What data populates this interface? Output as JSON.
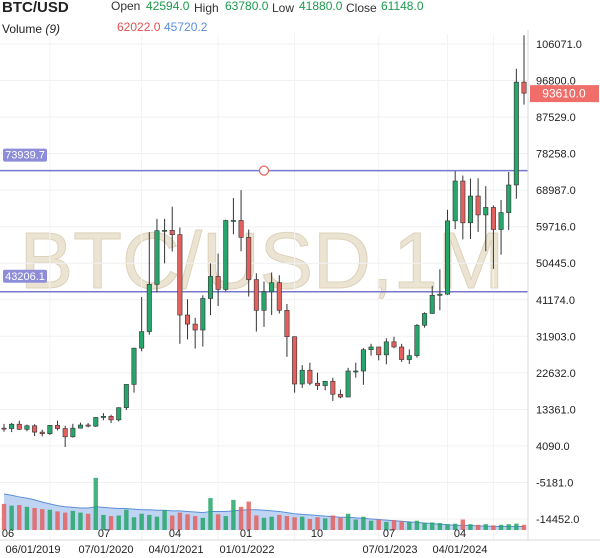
{
  "header": {
    "symbol": "BTC/USD",
    "open_label": "Open",
    "open_value": "42594.0",
    "high_label": "High",
    "high_value": "63780.0",
    "low_label": "Low",
    "low_value": "41880.0",
    "close_label": "Close",
    "close_value": "61148.0",
    "volume_label": "Volume",
    "volume_period": "(9)",
    "volume_value_a": "62022.0",
    "volume_value_b": "45720.2"
  },
  "watermark": "BTC/USD,1M",
  "colors": {
    "up": "#26a66a",
    "down": "#e2615e",
    "level": "#7777cc",
    "price_badge": "#ef6e6a",
    "volume_area": "#a9c5ef",
    "volume_line": "#5b8fd8"
  },
  "chart_data": {
    "type": "candlestick",
    "title": "BTC/USD",
    "timeframe": "1M",
    "price_axis_ticks": [
      106071.0,
      96800.0,
      87529.0,
      78258.0,
      68987.0,
      59716.0,
      50445.0,
      41174.0,
      31903.0,
      22632.0,
      13361.0,
      4090.0,
      -5181.0,
      -14452.0
    ],
    "price_axis_labels": [
      "106071.0",
      "96800.0",
      "87529.0",
      "78258.0",
      "68987.0",
      "59716.0",
      "50445.0",
      "41174.0",
      "31903.0",
      "22632.0",
      "13361.0",
      "4090.0",
      "-5181.0",
      "-14452.0"
    ],
    "x_axis_labels": [
      "06",
      "06/01/2019",
      "07",
      "07/01/2020",
      "04",
      "04/01/2021",
      "01",
      "01/01/2022",
      "10",
      "07",
      "07/01/2023",
      "04",
      "04/01/2024"
    ],
    "current_price": 93610.0,
    "current_price_label": "93610.0",
    "levels": [
      {
        "value": 73939.7,
        "label": "73939.7"
      },
      {
        "value": 43206.1,
        "label": "43206.1"
      }
    ],
    "candles": [
      [
        8600,
        9700,
        7700,
        8500
      ],
      [
        8500,
        9900,
        7600,
        9600
      ],
      [
        9600,
        10500,
        8100,
        8300
      ],
      [
        8300,
        9500,
        7800,
        9200
      ],
      [
        9200,
        9600,
        6600,
        7600
      ],
      [
        7600,
        8200,
        6500,
        7200
      ],
      [
        7200,
        9400,
        6900,
        9300
      ],
      [
        9300,
        10500,
        8000,
        8500
      ],
      [
        8500,
        9200,
        3800,
        6400
      ],
      [
        6400,
        9700,
        6200,
        8600
      ],
      [
        8600,
        10000,
        8500,
        9400
      ],
      [
        9400,
        9900,
        8800,
        9100
      ],
      [
        9100,
        11400,
        8900,
        11300
      ],
      [
        11300,
        12400,
        10600,
        11600
      ],
      [
        11600,
        12000,
        9900,
        10700
      ],
      [
        10700,
        13900,
        10300,
        13800
      ],
      [
        13800,
        19500,
        13200,
        19700
      ],
      [
        19700,
        29000,
        17600,
        28900
      ],
      [
        28900,
        41900,
        28100,
        33100
      ],
      [
        33100,
        58300,
        32300,
        45100
      ],
      [
        45100,
        61700,
        43000,
        58700
      ],
      [
        58700,
        61700,
        50400,
        58800
      ],
      [
        58800,
        64800,
        53400,
        57700
      ],
      [
        57700,
        59500,
        30000,
        37300
      ],
      [
        37300,
        41300,
        31100,
        35000
      ],
      [
        35000,
        36600,
        28800,
        33500
      ],
      [
        33500,
        42300,
        29300,
        41500
      ],
      [
        41500,
        50400,
        37300,
        47100
      ],
      [
        47100,
        52900,
        39600,
        43800
      ],
      [
        43800,
        61500,
        43300,
        61300
      ],
      [
        61300,
        67000,
        57800,
        61300
      ],
      [
        61300,
        69000,
        53500,
        57000
      ],
      [
        57000,
        59000,
        42000,
        46300
      ],
      [
        46300,
        47900,
        33100,
        38500
      ],
      [
        38500,
        45800,
        34300,
        43200
      ],
      [
        43200,
        48100,
        37300,
        45500
      ],
      [
        45500,
        47400,
        37700,
        38500
      ],
      [
        38500,
        40100,
        26700,
        31800
      ],
      [
        31800,
        31900,
        17600,
        19800
      ],
      [
        19800,
        24600,
        18800,
        23300
      ],
      [
        23300,
        25200,
        19500,
        20000
      ],
      [
        20000,
        22700,
        18300,
        19400
      ],
      [
        19400,
        20400,
        18200,
        20500
      ],
      [
        20500,
        21400,
        15500,
        17200
      ],
      [
        17200,
        18400,
        16200,
        16500
      ],
      [
        16500,
        23900,
        16500,
        23100
      ],
      [
        23100,
        25200,
        21400,
        23100
      ],
      [
        23100,
        28900,
        19600,
        28500
      ],
      [
        28500,
        30000,
        27000,
        29200
      ],
      [
        29200,
        29100,
        25800,
        27200
      ],
      [
        27200,
        31400,
        24800,
        30500
      ],
      [
        30500,
        31800,
        28900,
        29200
      ],
      [
        29200,
        30000,
        25400,
        26000
      ],
      [
        26000,
        28600,
        24900,
        27000
      ],
      [
        27000,
        35000,
        26500,
        34700
      ],
      [
        34700,
        38000,
        34100,
        37700
      ],
      [
        37700,
        44700,
        37600,
        42300
      ],
      [
        42300,
        48900,
        38500,
        42600
      ],
      [
        42600,
        64000,
        42400,
        61200
      ],
      [
        61200,
        73800,
        59100,
        71300
      ],
      [
        71300,
        72700,
        56500,
        60700
      ],
      [
        60700,
        71900,
        56600,
        67500
      ],
      [
        67500,
        72000,
        58400,
        62700
      ],
      [
        62700,
        70000,
        53500,
        64600
      ],
      [
        64600,
        65100,
        49000,
        59000
      ],
      [
        59000,
        66500,
        52600,
        63300
      ],
      [
        63300,
        73600,
        58900,
        70300
      ],
      [
        70300,
        99800,
        66800,
        96400
      ],
      [
        96400,
        108300,
        90700,
        93600
      ]
    ],
    "volume": [
      0.45,
      0.42,
      0.43,
      0.4,
      0.38,
      0.36,
      0.35,
      0.32,
      0.3,
      0.33,
      0.3,
      0.28,
      0.9,
      0.26,
      0.24,
      0.25,
      0.35,
      0.22,
      0.28,
      0.26,
      0.23,
      0.34,
      0.25,
      0.3,
      0.27,
      0.24,
      0.21,
      0.55,
      0.27,
      0.24,
      0.52,
      0.4,
      0.49,
      0.25,
      0.21,
      0.23,
      0.26,
      0.24,
      0.22,
      0.23,
      0.19,
      0.22,
      0.2,
      0.25,
      0.21,
      0.28,
      0.18,
      0.23,
      0.16,
      0.18,
      0.14,
      0.17,
      0.15,
      0.14,
      0.16,
      0.12,
      0.13,
      0.12,
      0.1,
      0.11,
      0.18,
      0.1,
      0.09,
      0.1,
      0.08,
      0.09,
      0.1,
      0.11,
      0.09
    ],
    "volume_avg": [
      0.62,
      0.6,
      0.57,
      0.55,
      0.52,
      0.48,
      0.45,
      0.42,
      0.4,
      0.39,
      0.38,
      0.38,
      0.4,
      0.39,
      0.38,
      0.37,
      0.37,
      0.36,
      0.35,
      0.35,
      0.34,
      0.34,
      0.33,
      0.33,
      0.32,
      0.31,
      0.3,
      0.32,
      0.32,
      0.32,
      0.33,
      0.34,
      0.35,
      0.35,
      0.34,
      0.33,
      0.32,
      0.3,
      0.28,
      0.27,
      0.26,
      0.25,
      0.24,
      0.23,
      0.22,
      0.22,
      0.21,
      0.2,
      0.19,
      0.18,
      0.17,
      0.16,
      0.15,
      0.14,
      0.13,
      0.12,
      0.11,
      0.1,
      0.09,
      0.08,
      0.08,
      0.08,
      0.07,
      0.07,
      0.06,
      0.06,
      0.06,
      0.06,
      0.06
    ]
  }
}
